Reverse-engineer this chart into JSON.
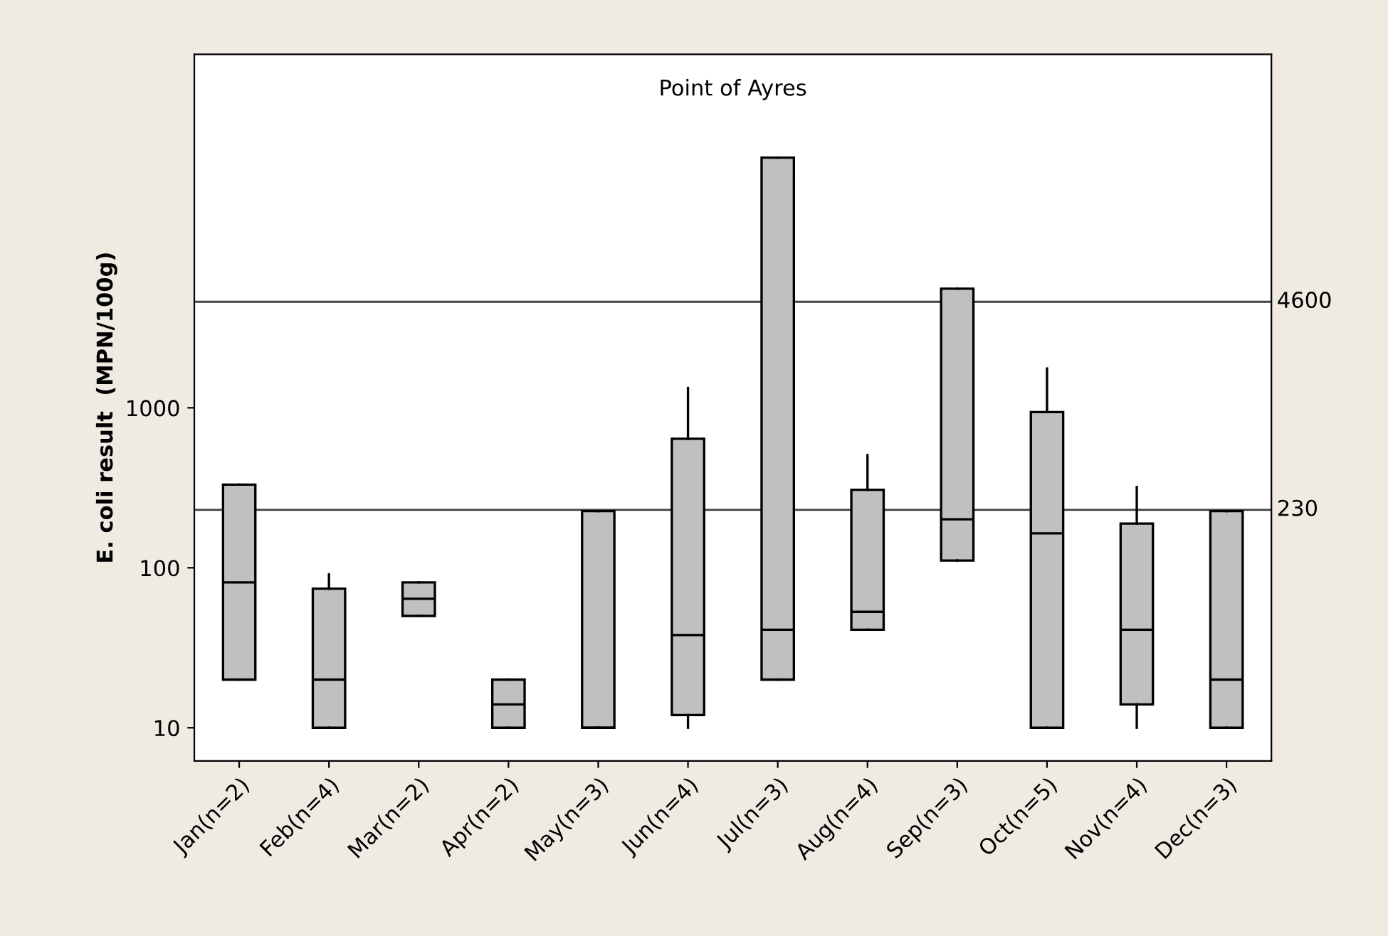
{
  "chart_data": {
    "type": "box",
    "title": "Point of Ayres",
    "ylabel": "E. coli result  (MPN/100g)",
    "categories": [
      "Jan(n=2)",
      "Feb(n=4)",
      "Mar(n=2)",
      "Apr(n=2)",
      "May(n=3)",
      "Jun(n=4)",
      "Jul(n=3)",
      "Aug(n=4)",
      "Sep(n=3)",
      "Oct(n=5)",
      "Nov(n=4)",
      "Dec(n=3)"
    ],
    "boxes": [
      {
        "low": 20,
        "q1": 20,
        "median": 81,
        "q3": 331,
        "high": 331
      },
      {
        "low": 10,
        "q1": 10,
        "median": 20,
        "q3": 74,
        "high": 91
      },
      {
        "low": 50,
        "q1": 50,
        "median": 64,
        "q3": 81,
        "high": 81
      },
      {
        "low": 10,
        "q1": 10,
        "median": 14,
        "q3": 20,
        "high": 20
      },
      {
        "low": 10,
        "q1": 10,
        "median": 10,
        "q3": 226,
        "high": 226
      },
      {
        "low": 10,
        "q1": 12,
        "median": 38,
        "q3": 640,
        "high": 1330
      },
      {
        "low": 20,
        "q1": 20,
        "median": 41,
        "q3": 36600,
        "high": 36600
      },
      {
        "low": 41,
        "q1": 41,
        "median": 53,
        "q3": 307,
        "high": 506
      },
      {
        "low": 111,
        "q1": 111,
        "median": 201,
        "q3": 5550,
        "high": 5550
      },
      {
        "low": 10,
        "q1": 10,
        "median": 164,
        "q3": 940,
        "high": 1760
      },
      {
        "low": 10,
        "q1": 14,
        "median": 41,
        "q3": 189,
        "high": 320
      },
      {
        "low": 10,
        "q1": 10,
        "median": 20,
        "q3": 226,
        "high": 226
      }
    ],
    "color": "#c0c0c0",
    "log": true,
    "ylim": [
      6.2,
      162000
    ],
    "yticks": [
      10,
      100,
      1000
    ],
    "ref_lines": [
      {
        "axis": "y",
        "value": 4600,
        "label": "4600",
        "color": "#404040"
      },
      {
        "axis": "y",
        "value": 230,
        "label": "230",
        "color": "#404040"
      }
    ],
    "grid": false,
    "legend": false
  }
}
